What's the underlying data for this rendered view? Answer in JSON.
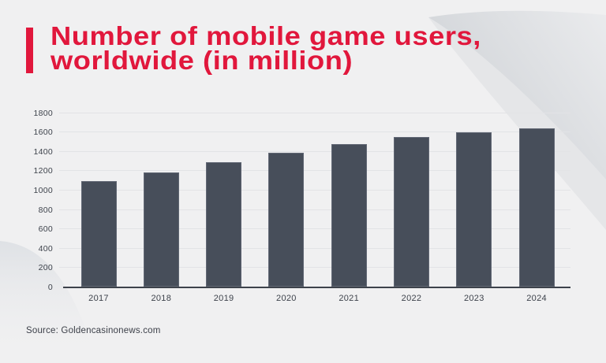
{
  "header": {
    "title_line1": "Number of mobile game users,",
    "title_line2": "worldwide (in million)",
    "title_color": "#e1173c",
    "accent_bar_color": "#e1173c"
  },
  "chart_data": {
    "type": "bar",
    "title": "Number of mobile game users, worldwide (in million)",
    "categories": [
      "2017",
      "2018",
      "2019",
      "2020",
      "2021",
      "2022",
      "2023",
      "2024"
    ],
    "values": [
      1087,
      1175,
      1283,
      1386,
      1474,
      1548,
      1597,
      1637
    ],
    "xlabel": "",
    "ylabel": "",
    "ylim": [
      0,
      1800
    ],
    "yticks": [
      0,
      200,
      400,
      600,
      800,
      1000,
      1200,
      1400,
      1600,
      1800
    ],
    "grid": true,
    "legend_position": "none",
    "bar_color": "#474e5a",
    "axis_color": "#3d424b",
    "gridline_color": "#e2e3e6",
    "tick_label_color": "#3d424b"
  },
  "footer": {
    "source": "Source: Goldencasinonews.com"
  },
  "background": {
    "page_color": "#f0f0f1",
    "swoosh_dark": "#d2d5d9",
    "swoosh_light": "#ebecee"
  }
}
